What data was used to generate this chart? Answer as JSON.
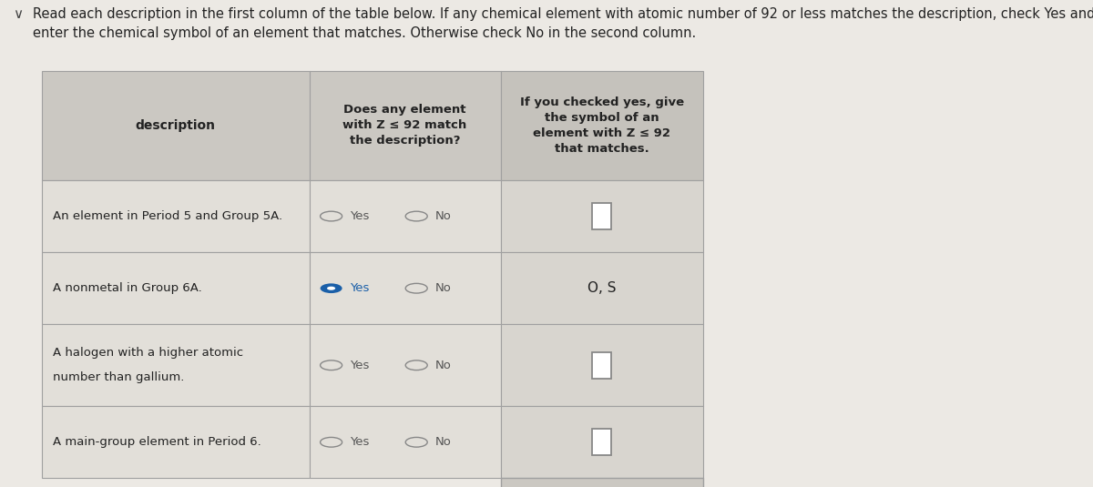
{
  "title_line1": "Read each description in the first column of the table below. If any chemical element with atomic number of 92 or less matches the description, check Yes and",
  "title_line2": "enter the chemical symbol of an element that matches. Otherwise check No in the second column.",
  "col_headers": [
    "description",
    "Does any element\nwith Z ≤ 92 match\nthe description?",
    "If you checked yes, give\nthe symbol of an\nelement with Z ≤ 92\nthat matches."
  ],
  "rows": [
    {
      "description": "An element in Period 5 and Group 5A.",
      "description2": "",
      "yes_selected": false,
      "symbol": "□"
    },
    {
      "description": "A nonmetal in Group 6A.",
      "description2": "",
      "yes_selected": true,
      "symbol": "O, S"
    },
    {
      "description": "A halogen with a higher atomic",
      "description2": "number than gallium.",
      "yes_selected": false,
      "symbol": "□"
    },
    {
      "description": "A main-group element in Period 6.",
      "description2": "",
      "yes_selected": false,
      "symbol": "□"
    }
  ],
  "bg_color": "#ece9e4",
  "table_col1_bg": "#e2dfd9",
  "table_col2_bg": "#e2dfd9",
  "table_col3_bg": "#d8d5cf",
  "header_col1_bg": "#cbc8c2",
  "header_col2_bg": "#cbc8c2",
  "header_col3_bg": "#c5c2bc",
  "button_bg": "#cbc8c2",
  "border_color": "#a0a0a0",
  "text_color": "#222222",
  "radio_selected_fill": "#1a5fa8",
  "radio_unselected_stroke": "#888888",
  "symbol_box_color": "#888888"
}
